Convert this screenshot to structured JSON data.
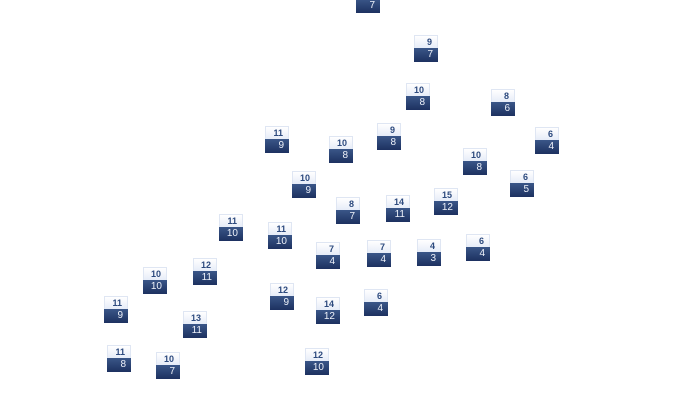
{
  "colors": {
    "tile_top": "#eef2fa",
    "tile_bottom": "#243a6a",
    "top_text": "#2d4a7e",
    "bottom_text": "#eef2fa"
  },
  "tiles": [
    {
      "top": "",
      "bottom": "7"
    },
    {
      "top": "9",
      "bottom": "7"
    },
    {
      "top": "10",
      "bottom": "8"
    },
    {
      "top": "8",
      "bottom": "6"
    },
    {
      "top": "11",
      "bottom": "9"
    },
    {
      "top": "10",
      "bottom": "8"
    },
    {
      "top": "9",
      "bottom": "8"
    },
    {
      "top": "6",
      "bottom": "4"
    },
    {
      "top": "10",
      "bottom": "8"
    },
    {
      "top": "10",
      "bottom": "9"
    },
    {
      "top": "6",
      "bottom": "5"
    },
    {
      "top": "8",
      "bottom": "7"
    },
    {
      "top": "14",
      "bottom": "11"
    },
    {
      "top": "15",
      "bottom": "12"
    },
    {
      "top": "11",
      "bottom": "10"
    },
    {
      "top": "11",
      "bottom": "10"
    },
    {
      "top": "7",
      "bottom": "4"
    },
    {
      "top": "7",
      "bottom": "4"
    },
    {
      "top": "4",
      "bottom": "3"
    },
    {
      "top": "6",
      "bottom": "4"
    },
    {
      "top": "12",
      "bottom": "11"
    },
    {
      "top": "10",
      "bottom": "10"
    },
    {
      "top": "11",
      "bottom": "9"
    },
    {
      "top": "12",
      "bottom": "9"
    },
    {
      "top": "14",
      "bottom": "12"
    },
    {
      "top": "6",
      "bottom": "4"
    },
    {
      "top": "13",
      "bottom": "11"
    },
    {
      "top": "11",
      "bottom": "8"
    },
    {
      "top": "10",
      "bottom": "7"
    },
    {
      "top": "12",
      "bottom": "10"
    }
  ]
}
